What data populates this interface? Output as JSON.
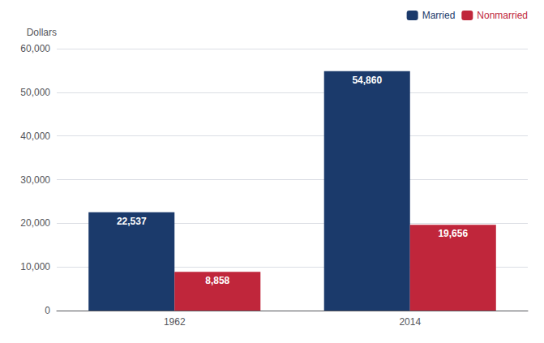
{
  "chart_data": {
    "type": "bar",
    "ylabel": "Dollars",
    "categories": [
      "1962",
      "2014"
    ],
    "series": [
      {
        "name": "Married",
        "color": "#1B3A6B",
        "values": [
          22537,
          54860
        ],
        "value_labels": [
          "22,537",
          "54,860"
        ]
      },
      {
        "name": "Nonmarried",
        "color": "#C0263B",
        "values": [
          8858,
          19656
        ],
        "value_labels": [
          "8,858",
          "19,656"
        ]
      }
    ],
    "ylim": [
      0,
      60000
    ],
    "yticks": [
      0,
      {
        "value": 10000,
        "label": "10,000"
      },
      {
        "value": 20000,
        "label": "20,000"
      },
      {
        "value": 30000,
        "label": "30,000"
      },
      {
        "value": 40000,
        "label": "40,000"
      },
      {
        "value": 50000,
        "label": "50,000"
      },
      {
        "value": 60000,
        "label": "60,000"
      }
    ],
    "grid": true,
    "legend": "upper right",
    "data_labels": true
  }
}
